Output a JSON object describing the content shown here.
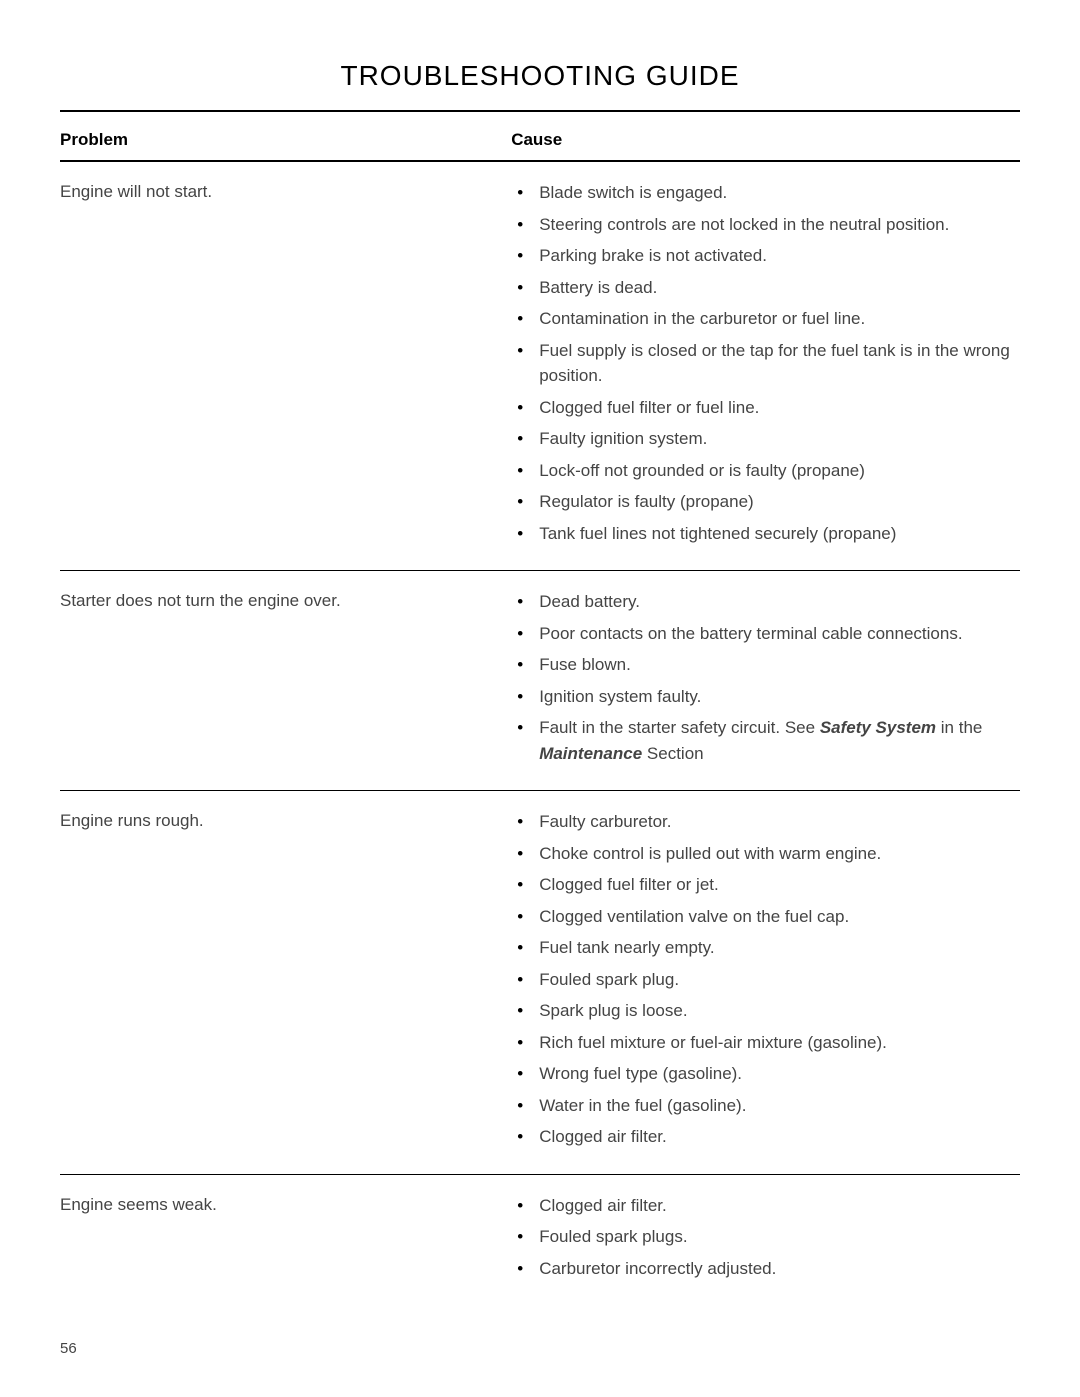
{
  "title": "TROUBLESHOOTING GUIDE",
  "headers": {
    "problem": "Problem",
    "cause": "Cause"
  },
  "rows": [
    {
      "problem": "Engine will not start.",
      "causes": [
        {
          "text": "Blade switch is engaged."
        },
        {
          "text": "Steering controls are not locked in the neutral position."
        },
        {
          "text": "Parking brake is not activated."
        },
        {
          "text": "Battery is dead."
        },
        {
          "text": "Contamination in the carburetor or fuel line."
        },
        {
          "text": "Fuel supply is closed or the tap for the fuel tank is in the wrong position."
        },
        {
          "text": "Clogged fuel filter or fuel line."
        },
        {
          "text": "Faulty ignition system."
        },
        {
          "text": "Lock-off not grounded or is faulty (propane)"
        },
        {
          "text": "Regulator is faulty (propane)"
        },
        {
          "text": "Tank fuel lines not tightened securely (propane)"
        }
      ]
    },
    {
      "problem": "Starter does not turn the engine over.",
      "causes": [
        {
          "text": "Dead battery."
        },
        {
          "text": "Poor contacts on the battery terminal cable connections."
        },
        {
          "text": "Fuse blown."
        },
        {
          "text": "Ignition system faulty."
        },
        {
          "html": "Fault in the starter safety circuit. See <span class=\"italic-bold\">Safety System</span> in the <span class=\"italic-bold\">Maintenance</span> Section"
        }
      ]
    },
    {
      "problem": "Engine runs rough.",
      "causes": [
        {
          "text": "Faulty carburetor."
        },
        {
          "text": "Choke control is pulled out with warm engine."
        },
        {
          "text": "Clogged fuel filter or jet."
        },
        {
          "text": "Clogged ventilation valve on the fuel cap."
        },
        {
          "text": "Fuel tank nearly empty."
        },
        {
          "text": "Fouled spark plug."
        },
        {
          "text": "Spark plug is loose."
        },
        {
          "text": "Rich fuel mixture or fuel-air mixture (gasoline)."
        },
        {
          "text": "Wrong fuel type (gasoline)."
        },
        {
          "text": "Water in the fuel (gasoline)."
        },
        {
          "text": "Clogged air filter."
        }
      ]
    },
    {
      "problem": "Engine seems weak.",
      "causes": [
        {
          "text": "Clogged air filter."
        },
        {
          "text": "Fouled spark plugs."
        },
        {
          "text": "Carburetor incorrectly adjusted."
        }
      ]
    }
  ],
  "page_number": "56",
  "colors": {
    "text": "#444444",
    "heading": "#000000",
    "rule": "#000000",
    "background": "#ffffff"
  },
  "typography": {
    "title_fontsize": 28,
    "body_fontsize": 17,
    "header_fontsize": 17
  }
}
